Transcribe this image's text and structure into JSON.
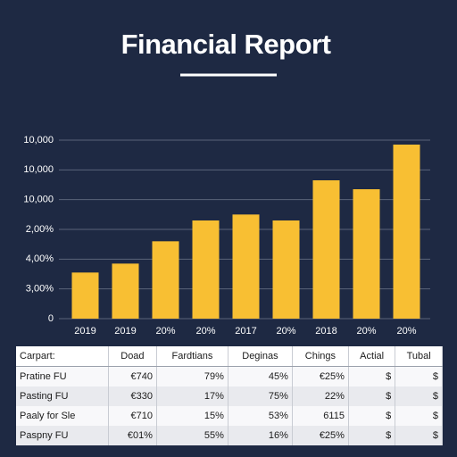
{
  "chart_data": {
    "type": "bar",
    "title": "Financial Report",
    "categories": [
      "2019",
      "2019",
      "20%",
      "20%",
      "2017",
      "20%",
      "2018",
      "20%",
      "20%"
    ],
    "values": [
      1.55,
      1.85,
      2.6,
      3.3,
      3.5,
      3.3,
      4.65,
      4.35,
      5.85
    ],
    "color": "#f8bf33",
    "ylim": [
      0,
      6
    ],
    "yticks": [
      0,
      {
        "value": 1,
        "label": "3,00%"
      },
      {
        "value": 2,
        "label": "4,00%"
      },
      {
        "value": 3,
        "label": "2,00%"
      },
      {
        "value": 4,
        "label": "10,000"
      },
      {
        "value": 5,
        "label": "10,000"
      },
      {
        "value": 6,
        "label": "10,000"
      }
    ],
    "grid": true
  },
  "table": {
    "header": [
      "Carpart:",
      "Doad",
      "Fardtians",
      "Deginas",
      "Chings",
      "Actial",
      "Tubal"
    ],
    "rows": [
      [
        "Pratine FU",
        "€740",
        "79%",
        "45%",
        "€25%",
        "$",
        "$"
      ],
      [
        "Pasting FU",
        "€330",
        "17%",
        "75%",
        "22%",
        "$",
        "$"
      ],
      [
        "Paaly for Sle",
        "€710",
        "15%",
        "53%",
        "6115",
        "$",
        "$"
      ],
      [
        "Paspny FU",
        "€01%",
        "55%",
        "16%",
        "€25%",
        "$",
        "$"
      ]
    ]
  }
}
